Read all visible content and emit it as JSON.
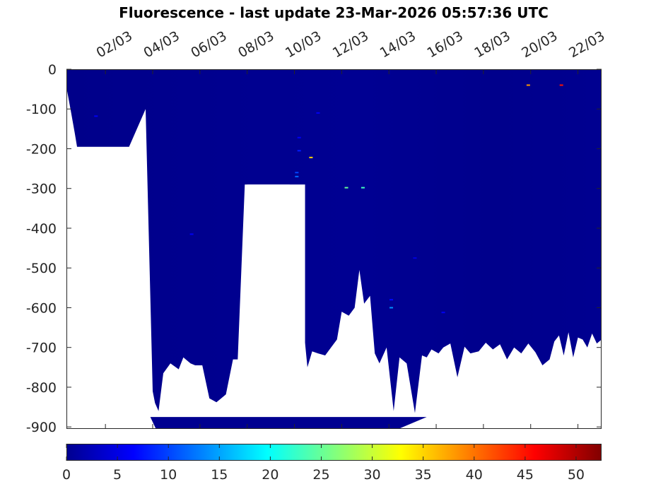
{
  "chart_data": {
    "type": "heatmap",
    "title": "Fluorescence - last update 23-Mar-2026 05:57:36 UTC",
    "xlabel": "",
    "ylabel": "",
    "x_axis": {
      "unit": "day of March 2026",
      "range": [
        0.35,
        23.0
      ],
      "position": "top",
      "ticks": [
        2,
        4,
        6,
        8,
        10,
        12,
        14,
        16,
        18,
        20,
        22
      ],
      "tick_labels": [
        "02/03",
        "04/03",
        "06/03",
        "08/03",
        "10/03",
        "12/03",
        "14/03",
        "16/03",
        "18/03",
        "20/03",
        "22/03"
      ]
    },
    "y_axis": {
      "range": [
        -905,
        0
      ],
      "ticks": [
        0,
        -100,
        -200,
        -300,
        -400,
        -500,
        -600,
        -700,
        -800,
        -900
      ],
      "tick_labels": [
        "0",
        "-100",
        "-200",
        "-300",
        "-400",
        "-500",
        "-600",
        "-700",
        "-800",
        "-900"
      ]
    },
    "colorbar": {
      "position": "bottom",
      "range": [
        0,
        52.5
      ],
      "ticks": [
        0,
        5,
        10,
        15,
        20,
        25,
        30,
        35,
        40,
        45,
        50
      ],
      "tick_labels": [
        "0",
        "5",
        "10",
        "15",
        "20",
        "25",
        "30",
        "35",
        "40",
        "45",
        "50"
      ],
      "colormap": "jet"
    },
    "field_color": "#000090",
    "background_value_approx": 1,
    "profile_bottom_depth": {
      "x": [
        0.35,
        0.55,
        0.7,
        0.8,
        0.95,
        1.1,
        1.5,
        2.0,
        2.5,
        3.0,
        3.7,
        4.0,
        4.1,
        4.25,
        4.45,
        4.75,
        5.1,
        5.3,
        5.6,
        5.8,
        6.1,
        6.4,
        6.7,
        6.9,
        7.1,
        7.4,
        7.6,
        7.9,
        8.1,
        8.45,
        8.55,
        8.95,
        9.3,
        9.8,
        10.55,
        10.75,
        11.0,
        11.3,
        11.55,
        11.8,
        12.0,
        12.3,
        12.55,
        12.75,
        12.95,
        13.2,
        13.4,
        13.6,
        13.9,
        14.2,
        14.45,
        14.75,
        15.1,
        15.4,
        15.6,
        15.8,
        16.1,
        16.3,
        16.6,
        16.9,
        17.2,
        17.45,
        17.8,
        18.1,
        18.4,
        18.7,
        19.0,
        19.3,
        19.6,
        19.9,
        20.2,
        20.5,
        20.8,
        21.0,
        21.2,
        21.4,
        21.6,
        21.8,
        22.0,
        22.2,
        22.4,
        22.6,
        22.8,
        23.0
      ],
      "depth": [
        -45,
        -110,
        -160,
        -195,
        -195,
        -195,
        -195,
        -195,
        -195,
        -195,
        -100,
        -810,
        -840,
        -860,
        -765,
        -740,
        -755,
        -725,
        -740,
        -745,
        -745,
        -828,
        -838,
        -828,
        -818,
        -730,
        -730,
        -290,
        -290,
        -290,
        -290,
        -290,
        -290,
        -290,
        -750,
        -710,
        -715,
        -720,
        -700,
        -680,
        -610,
        -620,
        -600,
        -505,
        -590,
        -570,
        -715,
        -740,
        -700,
        -860,
        -725,
        -740,
        -865,
        -720,
        -725,
        -705,
        -715,
        -700,
        -690,
        -775,
        -698,
        -715,
        -710,
        -688,
        -705,
        -692,
        -730,
        -700,
        -715,
        -690,
        -712,
        -745,
        -730,
        -685,
        -670,
        -720,
        -662,
        -725,
        -675,
        -680,
        -700,
        -665,
        -690,
        -680
      ]
    },
    "deep_band": {
      "x_start": 3.9,
      "x_end": 15.6,
      "depth_top": -875,
      "depth_bottom": -905
    },
    "gaps": [
      {
        "x_start": 8.0,
        "x_end": 10.45,
        "depth_top": -290,
        "depth_bottom": -905
      }
    ],
    "anomalies": [
      {
        "x": 10.7,
        "depth": -222,
        "value": 35
      },
      {
        "x": 12.2,
        "depth": -298,
        "value": 25
      },
      {
        "x": 12.9,
        "depth": -298,
        "value": 23
      },
      {
        "x": 10.1,
        "depth": -270,
        "value": 12
      },
      {
        "x": 10.2,
        "depth": -172,
        "value": 6
      },
      {
        "x": 10.2,
        "depth": -205,
        "value": 8
      },
      {
        "x": 10.1,
        "depth": -260,
        "value": 10
      },
      {
        "x": 19.9,
        "depth": -40,
        "value": 38
      },
      {
        "x": 21.3,
        "depth": -40,
        "value": 45
      },
      {
        "x": 14.1,
        "depth": -580,
        "value": 7
      },
      {
        "x": 14.1,
        "depth": -600,
        "value": 14
      },
      {
        "x": 1.6,
        "depth": -118,
        "value": 6
      },
      {
        "x": 5.65,
        "depth": -415,
        "value": 6
      },
      {
        "x": 16.3,
        "depth": -612,
        "value": 6
      },
      {
        "x": 15.1,
        "depth": -475,
        "value": 5
      },
      {
        "x": 11.0,
        "depth": -110,
        "value": 6
      }
    ],
    "grid": false,
    "legend": "none"
  }
}
